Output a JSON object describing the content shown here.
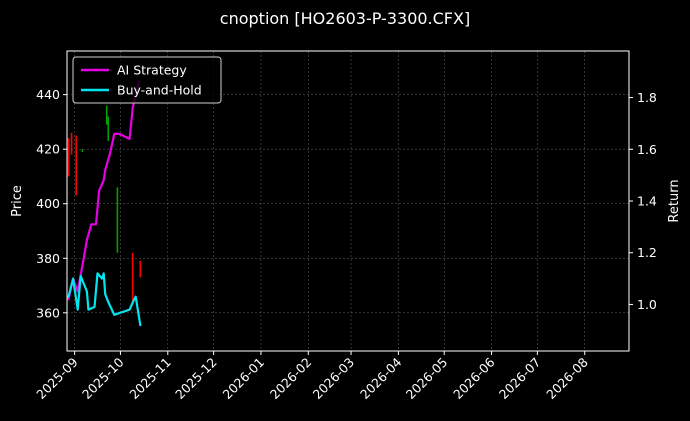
{
  "chart_data": {
    "type": "line",
    "title": "cnoption [HO2603-P-3300.CFX]",
    "background": "#000000",
    "grid": true,
    "legend_placement": "top-left",
    "x_axis": {
      "type": "date",
      "range": [
        "2025-08-27",
        "2026-08-30"
      ],
      "ticks": [
        "2025-09",
        "2025-10",
        "2025-11",
        "2025-12",
        "2026-01",
        "2026-02",
        "2026-03",
        "2026-04",
        "2026-05",
        "2026-06",
        "2026-07",
        "2026-08"
      ]
    },
    "y_left": {
      "label": "Price",
      "range": [
        346,
        456
      ],
      "ticks": [
        360,
        380,
        400,
        420,
        440
      ]
    },
    "y_right": {
      "label": "Return",
      "range": [
        0.82,
        1.98
      ],
      "ticks": [
        1.0,
        1.2,
        1.4,
        1.6,
        1.8
      ]
    },
    "candles": [
      {
        "date": "2025-08-28",
        "high": 424,
        "low": 410,
        "color": "#ff0000"
      },
      {
        "date": "2025-08-30",
        "high": 426,
        "low": 418,
        "color": "#ff0000"
      },
      {
        "date": "2025-09-02",
        "high": 425,
        "low": 403,
        "color": "#ff0000"
      },
      {
        "date": "2025-09-06",
        "high": 420,
        "low": 419,
        "color": "#00a000"
      },
      {
        "date": "2025-09-22",
        "high": 436,
        "low": 429,
        "color": "#00a000"
      },
      {
        "date": "2025-09-23",
        "high": 432,
        "low": 423,
        "color": "#00a000"
      },
      {
        "date": "2025-09-29",
        "high": 406,
        "low": 382,
        "color": "#00a000"
      },
      {
        "date": "2025-10-09",
        "high": 382,
        "low": 364,
        "color": "#ff0000"
      },
      {
        "date": "2025-10-14",
        "high": 379,
        "low": 373,
        "color": "#ff0000"
      }
    ],
    "series": [
      {
        "name": "AI Strategy",
        "color": "#e600e6",
        "axis": "right",
        "x": [
          "2025-08-28",
          "2025-08-31",
          "2025-09-03",
          "2025-09-07",
          "2025-09-09",
          "2025-09-12",
          "2025-09-15",
          "2025-09-17",
          "2025-09-20",
          "2025-09-21",
          "2025-09-24",
          "2025-09-27",
          "2025-09-30",
          "2025-10-07",
          "2025-10-09",
          "2025-10-13"
        ],
        "y": [
          1.02,
          1.1,
          1.05,
          1.18,
          1.25,
          1.31,
          1.31,
          1.44,
          1.48,
          1.52,
          1.58,
          1.66,
          1.66,
          1.64,
          1.76,
          1.86
        ]
      },
      {
        "name": "Buy-and-Hold",
        "color": "#00e5ee",
        "axis": "right",
        "x": [
          "2025-08-28",
          "2025-08-31",
          "2025-09-03",
          "2025-09-05",
          "2025-09-09",
          "2025-09-10",
          "2025-09-14",
          "2025-09-16",
          "2025-09-19",
          "2025-09-20",
          "2025-09-21",
          "2025-09-23",
          "2025-09-27",
          "2025-10-07",
          "2025-10-10",
          "2025-10-11",
          "2025-10-14"
        ],
        "y": [
          1.03,
          1.1,
          0.98,
          1.11,
          1.05,
          0.98,
          0.99,
          1.12,
          1.1,
          1.12,
          1.04,
          1.01,
          0.96,
          0.98,
          1.02,
          1.03,
          0.92
        ]
      }
    ]
  }
}
